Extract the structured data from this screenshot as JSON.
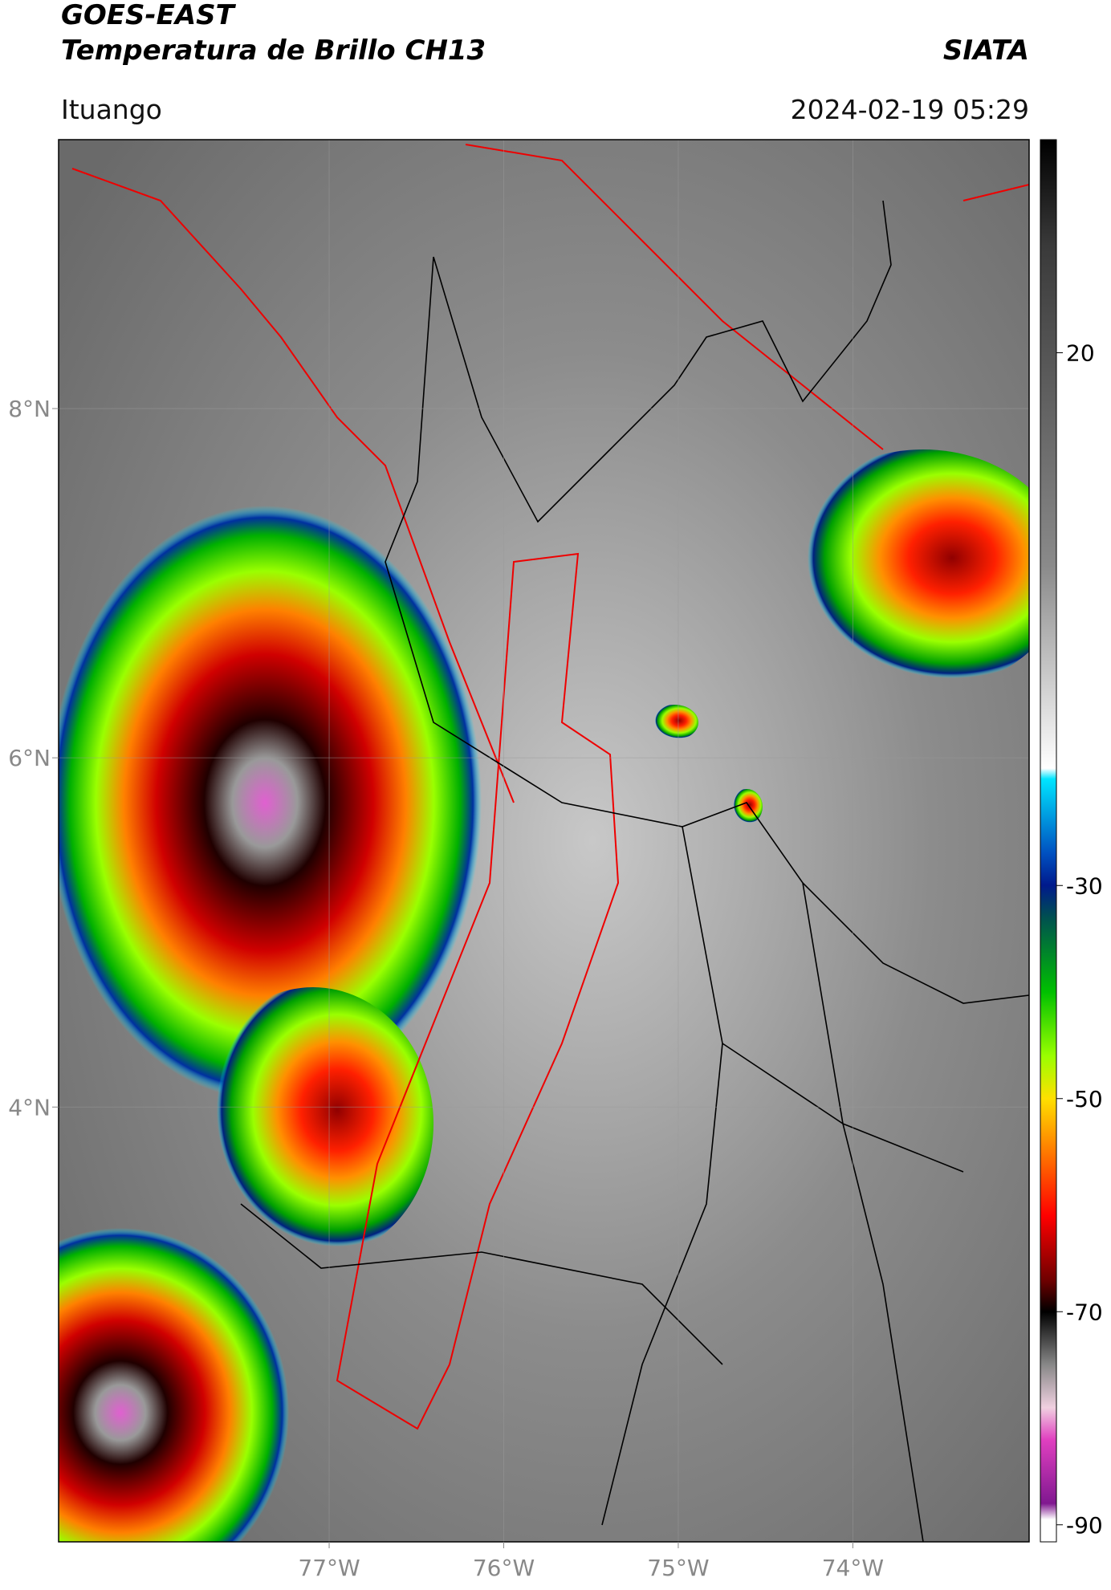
{
  "header": {
    "title_line1": "GOES-EAST",
    "title_line2": "Temperatura de Brillo CH13",
    "brand": "SIATA",
    "location": "Ituango",
    "timestamp": "2024-02-19 05:29"
  },
  "map": {
    "type": "map",
    "xlim": [
      -78.55,
      -72.99
    ],
    "ylim": [
      1.51,
      9.54
    ],
    "xticks": [
      {
        "value": -77,
        "label": "77°W"
      },
      {
        "value": -76,
        "label": "76°W"
      },
      {
        "value": -75,
        "label": "75°W"
      },
      {
        "value": -74,
        "label": "74°W"
      }
    ],
    "yticks": [
      {
        "value": 8,
        "label": "8°N"
      },
      {
        "value": 6,
        "label": "6°N"
      },
      {
        "value": 4,
        "label": "4°N"
      }
    ],
    "grid": true
  },
  "colorbar": {
    "clim": [
      -91.6,
      40
    ],
    "ticks": [
      20,
      -30,
      -50,
      -70,
      -90
    ],
    "colormap": [
      {
        "value": 40,
        "color": "#000000"
      },
      {
        "value": 30,
        "color": "#3a3a3a"
      },
      {
        "value": 0,
        "color": "#8a8a8a"
      },
      {
        "value": -19,
        "color": "#ffffff"
      },
      {
        "value": -20,
        "color": "#00e5ff"
      },
      {
        "value": -27,
        "color": "#0050c0"
      },
      {
        "value": -30,
        "color": "#001a8c"
      },
      {
        "value": -33,
        "color": "#005050"
      },
      {
        "value": -40,
        "color": "#00c000"
      },
      {
        "value": -46,
        "color": "#9aff00"
      },
      {
        "value": -50,
        "color": "#ffe000"
      },
      {
        "value": -55,
        "color": "#ff7a00"
      },
      {
        "value": -61,
        "color": "#ff0000"
      },
      {
        "value": -67,
        "color": "#700000"
      },
      {
        "value": -70,
        "color": "#000000"
      },
      {
        "value": -75,
        "color": "#888888"
      },
      {
        "value": -79,
        "color": "#f0d0e0"
      },
      {
        "value": -82,
        "color": "#e040c0"
      },
      {
        "value": -88,
        "color": "#801890"
      },
      {
        "value": -89.5,
        "color": "#ffffff"
      }
    ]
  }
}
